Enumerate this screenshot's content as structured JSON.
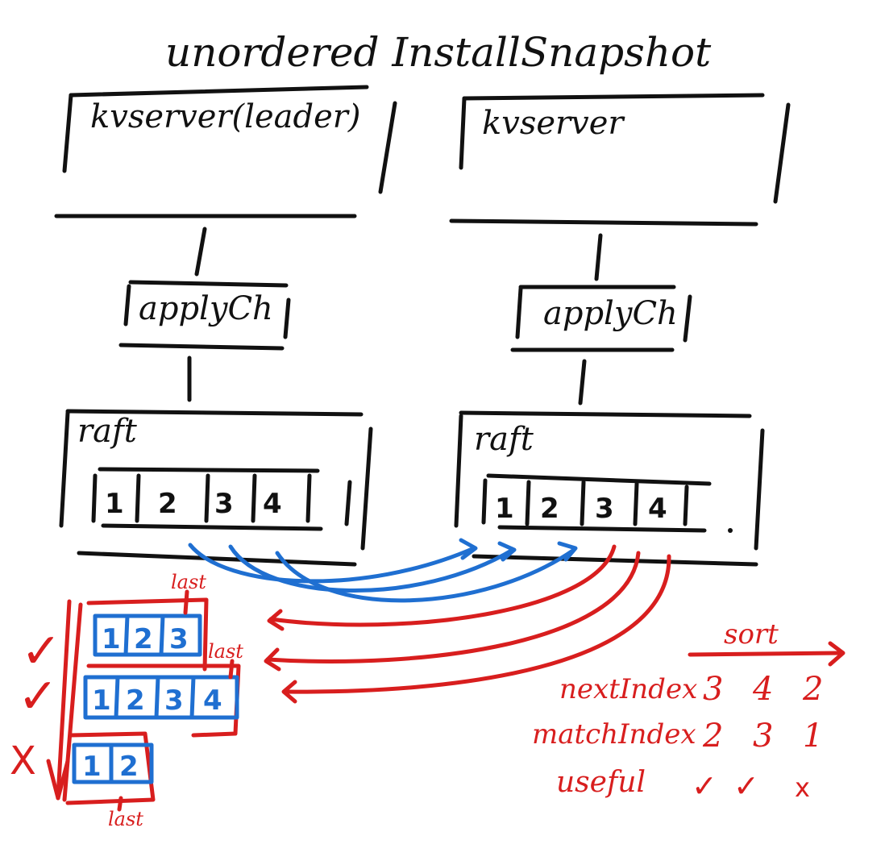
{
  "title": "unordered InstallSnapshot",
  "colors": {
    "ink": "#111111",
    "red": "#d81e1e",
    "blue": "#1f6fd1"
  },
  "leader": {
    "label": "kvserver(leader)",
    "channel": "applyCh",
    "raft": "raft",
    "log": [
      "1",
      "2",
      "3",
      "4"
    ]
  },
  "follower": {
    "label": "kvserver",
    "channel": "applyCh",
    "raft": "raft",
    "log": [
      "1",
      "2",
      "3",
      "4"
    ]
  },
  "snapshots": [
    {
      "entries": [
        "1",
        "2",
        "3"
      ],
      "last_label": "last",
      "mark": "✓"
    },
    {
      "entries": [
        "1",
        "2",
        "3",
        "4"
      ],
      "last_label": "last",
      "mark": "✓"
    },
    {
      "entries": [
        "1",
        "2"
      ],
      "last_label": "last",
      "mark": "X"
    }
  ],
  "sort_table": {
    "sort_label": "sort",
    "next_index_label": "nextIndex",
    "match_index_label": "matchIndex",
    "useful_label": "useful",
    "next_index": [
      "3",
      "4",
      "2"
    ],
    "match_index": [
      "2",
      "3",
      "1"
    ],
    "useful": [
      "✓",
      "✓",
      "x"
    ]
  }
}
